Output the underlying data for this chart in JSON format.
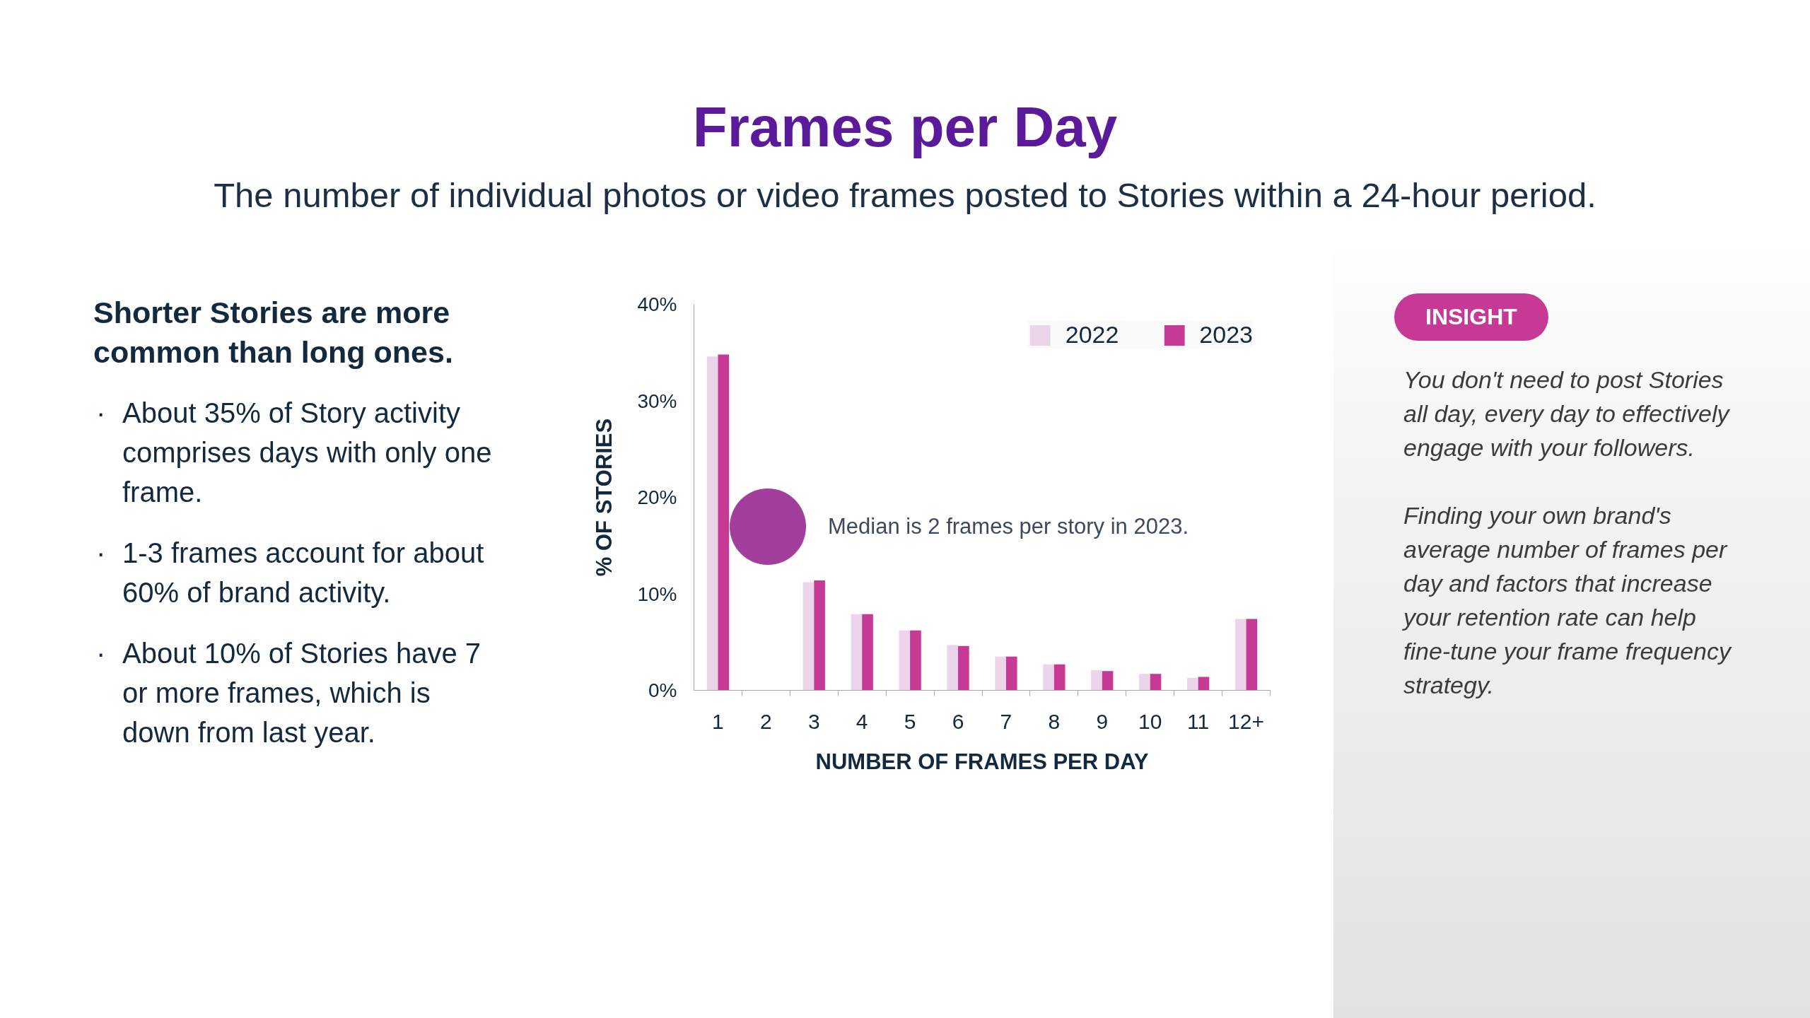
{
  "chart_data": {
    "type": "bar",
    "title": "Frames per Day",
    "subtitle": "The number of individual photos or video frames posted to Stories within a 24-hour period.",
    "xlabel": "NUMBER OF FRAMES PER DAY",
    "ylabel": "% OF STORIES",
    "categories": [
      "1",
      "2",
      "3",
      "4",
      "5",
      "6",
      "7",
      "8",
      "9",
      "10",
      "11",
      "12+"
    ],
    "series": [
      {
        "name": "2022",
        "color": "#ecd5ea",
        "values": [
          34.6,
          null,
          11.2,
          7.9,
          6.2,
          4.7,
          3.5,
          2.7,
          2.1,
          1.7,
          1.3,
          7.4
        ]
      },
      {
        "name": "2023",
        "color": "#c63a96",
        "values": [
          34.8,
          null,
          11.4,
          7.9,
          6.2,
          4.6,
          3.5,
          2.7,
          2.0,
          1.7,
          1.4,
          7.4
        ]
      }
    ],
    "ylim": [
      0,
      40
    ],
    "yticks": [
      {
        "value": 0,
        "label": "0%"
      },
      {
        "value": 10,
        "label": "10%"
      },
      {
        "value": 20,
        "label": "20%"
      },
      {
        "value": 30,
        "label": "30%"
      },
      {
        "value": 40,
        "label": "40%"
      }
    ],
    "grid": false,
    "legend": "top right",
    "annotations": [
      "Shorter Stories are more common than long ones.",
      "· About 35% of Story activity comprises days with only one frame.",
      "· 1-3 frames account for about 60% of brand activity.",
      "· About 10% of Stories have 7 or more frames, which is down from last year.",
      "INSIGHT",
      "You don't need to post Stories all day, every day to effectively engage with your followers.",
      "Finding your own brand's average number of frames per day and factors that increase your retention rate can help fine-tune your frame frequency strategy.",
      "Median is 2 frames per story in 2023."
    ]
  }
}
